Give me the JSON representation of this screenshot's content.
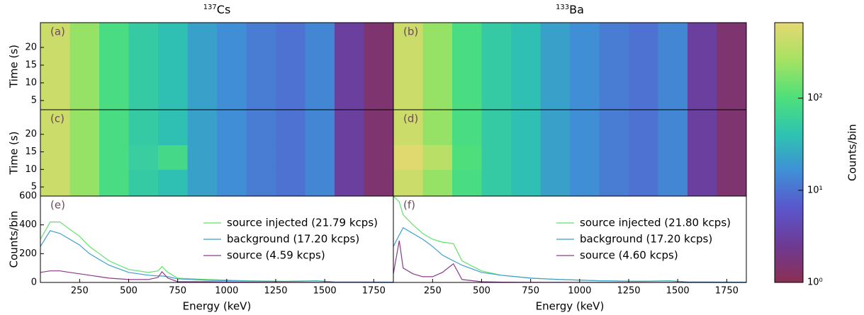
{
  "chart_data": [
    {
      "type": "heatmap",
      "title_isotope": "137",
      "title": "Cs",
      "panel_label": "(a)",
      "ylabel": "Time (s)",
      "x_bins": [
        50,
        200,
        350,
        500,
        650,
        800,
        950,
        1100,
        1250,
        1400,
        1550,
        1700,
        1850
      ],
      "y_bins": [
        2.4,
        10,
        17,
        27
      ],
      "xlim": [
        50,
        1850
      ],
      "ylim": [
        2.4,
        27
      ],
      "yticks": [
        5,
        10,
        15,
        20
      ],
      "z": [
        [
          450,
          220,
          90,
          50,
          38,
          22,
          16,
          12,
          10,
          14,
          3,
          1.5
        ],
        [
          450,
          220,
          90,
          50,
          38,
          22,
          16,
          12,
          10,
          14,
          3,
          1.5
        ],
        [
          450,
          220,
          90,
          50,
          38,
          22,
          16,
          12,
          10,
          14,
          3,
          1.5
        ]
      ]
    },
    {
      "type": "heatmap",
      "title_isotope": "133",
      "title": "Ba",
      "panel_label": "(b)",
      "x_bins": [
        50,
        200,
        350,
        500,
        650,
        800,
        950,
        1100,
        1250,
        1400,
        1550,
        1700,
        1850
      ],
      "y_bins": [
        2.4,
        10,
        17,
        27
      ],
      "xlim": [
        50,
        1850
      ],
      "ylim": [
        2.4,
        27
      ],
      "z": [
        [
          450,
          220,
          90,
          50,
          38,
          22,
          16,
          12,
          10,
          14,
          3,
          1.5
        ],
        [
          450,
          220,
          90,
          50,
          38,
          22,
          16,
          12,
          10,
          14,
          3,
          1.5
        ],
        [
          450,
          220,
          90,
          50,
          38,
          22,
          16,
          12,
          10,
          14,
          3,
          1.5
        ]
      ]
    },
    {
      "type": "heatmap",
      "panel_label": "(c)",
      "ylabel": "Time (s)",
      "x_bins": [
        50,
        200,
        350,
        500,
        650,
        800,
        950,
        1100,
        1250,
        1400,
        1550,
        1700,
        1850
      ],
      "y_bins": [
        2.4,
        10,
        17,
        27
      ],
      "xlim": [
        50,
        1850
      ],
      "ylim": [
        2.4,
        27
      ],
      "yticks": [
        5,
        10,
        15,
        20
      ],
      "z": [
        [
          450,
          220,
          90,
          50,
          38,
          22,
          16,
          12,
          10,
          14,
          3,
          1.5
        ],
        [
          450,
          220,
          90,
          55,
          80,
          22,
          16,
          12,
          10,
          14,
          3,
          1.5
        ],
        [
          450,
          220,
          90,
          50,
          38,
          22,
          16,
          12,
          10,
          14,
          3,
          1.5
        ]
      ]
    },
    {
      "type": "heatmap",
      "panel_label": "(d)",
      "x_bins": [
        50,
        200,
        350,
        500,
        650,
        800,
        950,
        1100,
        1250,
        1400,
        1550,
        1700,
        1850
      ],
      "y_bins": [
        2.4,
        10,
        17,
        27
      ],
      "xlim": [
        50,
        1850
      ],
      "ylim": [
        2.4,
        27
      ],
      "z": [
        [
          450,
          220,
          90,
          50,
          38,
          22,
          16,
          12,
          10,
          14,
          3,
          1.5
        ],
        [
          600,
          350,
          100,
          50,
          38,
          22,
          16,
          12,
          10,
          14,
          3,
          1.5
        ],
        [
          450,
          220,
          90,
          50,
          38,
          22,
          16,
          12,
          10,
          14,
          3,
          1.5
        ]
      ]
    },
    {
      "type": "line",
      "panel_label": "(e)",
      "xlabel": "Energy (keV)",
      "ylabel": "Counts/bin",
      "xlim": [
        50,
        1850
      ],
      "ylim": [
        0,
        600
      ],
      "xticks": [
        250,
        500,
        750,
        1000,
        1250,
        1500,
        1750
      ],
      "yticks": [
        0,
        200,
        400,
        600
      ],
      "x": [
        50,
        100,
        150,
        200,
        250,
        300,
        350,
        400,
        500,
        600,
        650,
        670,
        700,
        750,
        900,
        1100,
        1300,
        1460,
        1550,
        1850
      ],
      "series": [
        {
          "name": "source injected (21.79 kcps)",
          "color": "#5ee36a",
          "values": [
            300,
            420,
            420,
            370,
            320,
            250,
            200,
            150,
            90,
            70,
            80,
            110,
            70,
            30,
            20,
            12,
            8,
            12,
            4,
            2
          ]
        },
        {
          "name": "background (17.20 kcps)",
          "color": "#3a9fd0",
          "values": [
            250,
            360,
            340,
            300,
            260,
            200,
            160,
            120,
            70,
            50,
            45,
            45,
            40,
            25,
            15,
            10,
            7,
            11,
            3,
            2
          ]
        },
        {
          "name": "source (4.59 kcps)",
          "color": "#8b3a8b",
          "values": [
            70,
            80,
            80,
            70,
            60,
            50,
            40,
            30,
            20,
            20,
            35,
            75,
            30,
            5,
            5,
            2,
            1,
            1,
            1,
            0
          ]
        }
      ]
    },
    {
      "type": "line",
      "panel_label": "(f)",
      "xlabel": "Energy (keV)",
      "xlim": [
        50,
        1850
      ],
      "ylim": [
        0,
        600
      ],
      "xticks": [
        250,
        500,
        750,
        1000,
        1250,
        1500,
        1750
      ],
      "x": [
        50,
        80,
        100,
        150,
        200,
        250,
        300,
        356,
        400,
        500,
        600,
        750,
        900,
        1100,
        1300,
        1460,
        1550,
        1850
      ],
      "series": [
        {
          "name": "source injected (21.80 kcps)",
          "color": "#5ee36a",
          "values": [
            600,
            560,
            470,
            400,
            340,
            300,
            280,
            270,
            150,
            80,
            50,
            30,
            20,
            12,
            8,
            12,
            4,
            2
          ]
        },
        {
          "name": "background (17.20 kcps)",
          "color": "#3a9fd0",
          "values": [
            250,
            330,
            380,
            340,
            300,
            250,
            190,
            150,
            120,
            70,
            50,
            30,
            20,
            12,
            8,
            11,
            3,
            2
          ]
        },
        {
          "name": "source (4.60 kcps)",
          "color": "#8b3a8b",
          "values": [
            60,
            290,
            100,
            60,
            40,
            40,
            70,
            130,
            20,
            5,
            2,
            1,
            1,
            0,
            0,
            1,
            0,
            0
          ]
        }
      ]
    },
    {
      "type": "colorbar",
      "label": "Counts/bin",
      "log": true,
      "zlim": [
        1,
        660
      ],
      "zticks": [
        {
          "value": 1,
          "label": "10⁰"
        },
        {
          "value": 10,
          "label": "10¹"
        },
        {
          "value": 100,
          "label": "10²"
        }
      ],
      "colors": [
        "#8b2f52",
        "#6e3a94",
        "#5a56cc",
        "#3f8fd6",
        "#2ec4b0",
        "#4fe07a",
        "#a6e262",
        "#e6d872"
      ]
    }
  ]
}
